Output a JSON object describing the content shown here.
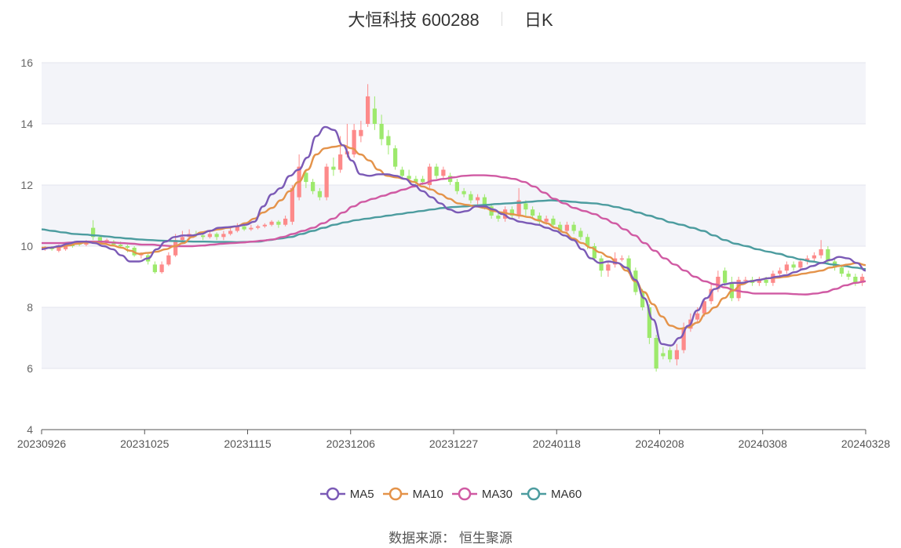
{
  "header": {
    "title": "大恒科技 600288",
    "period": "日K"
  },
  "source": {
    "label": "数据来源：",
    "value": "恒生聚源"
  },
  "colors": {
    "up": "#fd8a8a",
    "down": "#9de96c",
    "MA5": "#7b5ab6",
    "MA10": "#e4934a",
    "MA30": "#d05aa3",
    "MA60": "#4c9c9f"
  },
  "chart_data": {
    "type": "candlestick",
    "ylim": [
      4,
      16
    ],
    "yticks": [
      4,
      6,
      8,
      10,
      12,
      14,
      16
    ],
    "xticks": [
      "20230926",
      "20231025",
      "20231115",
      "20231206",
      "20231227",
      "20240118",
      "20240208",
      "20240308",
      "20240328"
    ],
    "legend": [
      "MA5",
      "MA10",
      "MA30",
      "MA60"
    ],
    "ma": {
      "MA5": [
        9.9,
        9.95,
        10.0,
        10.08,
        10.15,
        10.15,
        10.1,
        10.0,
        9.9,
        9.7,
        9.5,
        9.5,
        9.6,
        9.9,
        10.15,
        10.3,
        10.35,
        10.35,
        10.4,
        10.5,
        10.6,
        10.62,
        10.65,
        10.7,
        10.8,
        11.3,
        11.7,
        11.9,
        12.3,
        12.5,
        12.9,
        13.6,
        13.9,
        13.8,
        13.3,
        12.8,
        12.35,
        12.3,
        12.35,
        12.35,
        12.3,
        12.2,
        12.0,
        11.8,
        11.6,
        11.4,
        11.2,
        11.1,
        11.15,
        11.3,
        11.3,
        11.2,
        11.05,
        10.9,
        10.8,
        10.75,
        10.7,
        10.6,
        10.5,
        10.35,
        10.2,
        9.9,
        9.6,
        9.45,
        9.5,
        9.45,
        9.3,
        8.9,
        8.3,
        7.6,
        6.8,
        6.75,
        7.0,
        7.4,
        7.9,
        8.3,
        8.6,
        8.75,
        8.8,
        8.8,
        8.85,
        8.9,
        8.95,
        9.0,
        9.05,
        9.15,
        9.25,
        9.35,
        9.45,
        9.55,
        9.65,
        9.6,
        9.45,
        9.2
      ],
      "MA10": [
        9.95,
        9.95,
        9.98,
        10.02,
        10.08,
        10.12,
        10.12,
        10.08,
        10.02,
        9.95,
        9.85,
        9.75,
        9.78,
        9.82,
        9.9,
        10.0,
        10.1,
        10.3,
        10.45,
        10.5,
        10.55,
        10.6,
        10.65,
        10.75,
        10.9,
        11.1,
        11.25,
        11.5,
        11.8,
        12.1,
        12.5,
        13.0,
        13.2,
        13.25,
        13.3,
        13.2,
        13.0,
        12.8,
        12.5,
        12.3,
        12.25,
        12.2,
        12.1,
        11.95,
        11.85,
        11.7,
        11.55,
        11.4,
        11.35,
        11.3,
        11.25,
        11.15,
        11.1,
        11.05,
        11.0,
        10.95,
        10.85,
        10.75,
        10.6,
        10.45,
        10.25,
        10.1,
        9.95,
        9.8,
        9.65,
        9.45,
        9.2,
        8.85,
        8.5,
        8.1,
        7.7,
        7.4,
        7.3,
        7.35,
        7.5,
        7.8,
        8.0,
        8.3,
        8.55,
        8.75,
        8.85,
        8.9,
        8.95,
        8.97,
        9.0,
        9.05,
        9.1,
        9.15,
        9.2,
        9.3,
        9.35,
        9.4,
        9.45,
        9.38
      ],
      "MA30": [
        10.1,
        10.1,
        10.1,
        10.12,
        10.15,
        10.15,
        10.15,
        10.12,
        10.1,
        10.08,
        10.05,
        10.05,
        10.02,
        10.0,
        10.0,
        10.0,
        10.02,
        10.05,
        10.08,
        10.1,
        10.12,
        10.15,
        10.18,
        10.22,
        10.3,
        10.4,
        10.5,
        10.6,
        10.75,
        10.9,
        11.1,
        11.3,
        11.45,
        11.55,
        11.65,
        11.75,
        11.85,
        11.95,
        12.05,
        12.15,
        12.2,
        12.25,
        12.3,
        12.32,
        12.32,
        12.3,
        12.25,
        12.2,
        12.1,
        11.95,
        11.75,
        11.55,
        11.4,
        11.25,
        11.15,
        11.05,
        10.9,
        10.75,
        10.55,
        10.35,
        10.1,
        9.85,
        9.6,
        9.4,
        9.2,
        9.0,
        8.85,
        8.75,
        8.65,
        8.55,
        8.5,
        8.45,
        8.45,
        8.45,
        8.45,
        8.43,
        8.42,
        8.45,
        8.5,
        8.6,
        8.72,
        8.8,
        8.85
      ],
      "MA60": [
        10.55,
        10.5,
        10.45,
        10.4,
        10.38,
        10.35,
        10.32,
        10.28,
        10.25,
        10.22,
        10.2,
        10.18,
        10.17,
        10.16,
        10.15,
        10.15,
        10.14,
        10.14,
        10.13,
        10.14,
        10.15,
        10.2,
        10.25,
        10.3,
        10.4,
        10.5,
        10.6,
        10.7,
        10.78,
        10.85,
        10.9,
        10.95,
        11.0,
        11.05,
        11.1,
        11.15,
        11.2,
        11.25,
        11.28,
        11.3,
        11.33,
        11.35,
        11.38,
        11.4,
        11.42,
        11.45,
        11.48,
        11.5,
        11.48,
        11.45,
        11.42,
        11.4,
        11.35,
        11.28,
        11.2,
        11.1,
        11.0,
        10.9,
        10.78,
        10.7,
        10.6,
        10.5,
        10.35,
        10.2,
        10.08,
        10.0,
        9.9,
        9.82,
        9.75,
        9.65,
        9.57,
        9.5,
        9.45,
        9.4,
        9.35,
        9.3,
        9.25
      ]
    },
    "candles": [
      [
        9.9,
        9.95,
        10.0,
        9.85
      ],
      [
        9.95,
        9.9,
        10.0,
        9.85
      ],
      [
        9.85,
        10.0,
        10.05,
        9.8
      ],
      [
        9.9,
        10.05,
        10.1,
        9.85
      ],
      [
        10.05,
        10.0,
        10.1,
        9.95
      ],
      [
        10.1,
        10.05,
        10.15,
        10.0
      ],
      [
        10.05,
        10.1,
        10.2,
        10.0
      ],
      [
        10.6,
        10.3,
        10.85,
        10.2
      ],
      [
        10.3,
        10.1,
        10.35,
        10.0
      ],
      [
        10.1,
        10.2,
        10.25,
        10.05
      ],
      [
        10.15,
        10.05,
        10.2,
        10.0
      ],
      [
        10.05,
        10.0,
        10.15,
        9.95
      ],
      [
        10.0,
        9.95,
        10.05,
        9.8
      ],
      [
        9.95,
        9.7,
        10.0,
        9.65
      ],
      [
        9.7,
        9.75,
        9.8,
        9.6
      ],
      [
        9.7,
        9.5,
        9.75,
        9.4
      ],
      [
        9.4,
        9.15,
        9.5,
        9.1
      ],
      [
        9.15,
        9.4,
        9.5,
        9.1
      ],
      [
        9.4,
        9.7,
        9.8,
        9.35
      ],
      [
        9.7,
        10.2,
        10.4,
        9.65
      ],
      [
        10.2,
        10.3,
        10.5,
        10.1
      ],
      [
        10.3,
        10.4,
        10.55,
        10.2
      ],
      [
        10.4,
        10.35,
        10.5,
        10.3
      ],
      [
        10.35,
        10.3,
        10.4,
        10.2
      ],
      [
        10.3,
        10.4,
        10.5,
        10.25
      ],
      [
        10.4,
        10.3,
        10.45,
        10.2
      ],
      [
        10.3,
        10.4,
        10.5,
        10.2
      ],
      [
        10.4,
        10.5,
        10.6,
        10.35
      ],
      [
        10.5,
        10.65,
        10.75,
        10.45
      ],
      [
        10.65,
        10.55,
        10.7,
        10.5
      ],
      [
        10.55,
        10.6,
        10.7,
        10.5
      ],
      [
        10.6,
        10.65,
        10.7,
        10.55
      ],
      [
        10.65,
        10.7,
        10.75,
        10.6
      ],
      [
        10.7,
        10.8,
        10.85,
        10.65
      ],
      [
        10.8,
        10.7,
        10.85,
        10.6
      ],
      [
        10.7,
        10.9,
        11.0,
        10.65
      ],
      [
        10.8,
        11.9,
        12.0,
        10.7
      ],
      [
        11.6,
        12.6,
        13.0,
        11.5
      ],
      [
        12.4,
        12.1,
        12.5,
        11.9
      ],
      [
        12.1,
        11.8,
        12.2,
        11.7
      ],
      [
        11.8,
        11.6,
        11.9,
        11.5
      ],
      [
        11.6,
        12.6,
        12.7,
        11.5
      ],
      [
        12.6,
        12.5,
        12.9,
        12.3
      ],
      [
        12.5,
        13.0,
        13.6,
        12.4
      ],
      [
        13.0,
        13.1,
        14.0,
        12.9
      ],
      [
        13.0,
        13.8,
        14.0,
        12.9
      ],
      [
        13.6,
        13.8,
        14.1,
        13.4
      ],
      [
        14.0,
        14.9,
        15.3,
        13.9
      ],
      [
        14.5,
        14.0,
        14.9,
        13.8
      ],
      [
        14.0,
        13.5,
        14.3,
        13.3
      ],
      [
        13.6,
        13.3,
        13.8,
        13.0
      ],
      [
        13.2,
        12.6,
        13.3,
        12.5
      ],
      [
        12.5,
        12.3,
        12.6,
        12.2
      ],
      [
        12.3,
        12.2,
        12.5,
        12.1
      ],
      [
        12.2,
        12.1,
        12.3,
        12.0
      ],
      [
        12.2,
        12.1,
        12.3,
        12.0
      ],
      [
        12.0,
        12.6,
        12.7,
        11.9
      ],
      [
        12.6,
        12.3,
        12.7,
        12.2
      ],
      [
        12.3,
        12.5,
        12.6,
        12.2
      ],
      [
        12.3,
        12.1,
        12.4,
        12.0
      ],
      [
        12.1,
        11.8,
        12.2,
        11.7
      ],
      [
        11.8,
        11.7,
        11.9,
        11.6
      ],
      [
        11.7,
        11.5,
        11.8,
        11.4
      ],
      [
        11.5,
        11.6,
        11.7,
        11.3
      ],
      [
        11.6,
        11.3,
        11.7,
        11.2
      ],
      [
        11.3,
        11.0,
        11.4,
        10.9
      ],
      [
        11.0,
        10.9,
        11.1,
        10.8
      ],
      [
        10.9,
        11.2,
        11.3,
        10.8
      ],
      [
        11.2,
        11.0,
        11.3,
        10.9
      ],
      [
        11.0,
        11.5,
        11.9,
        10.9
      ]
    ],
    "candles_tail": [
      [
        11.4,
        11.2,
        11.5,
        11.0
      ],
      [
        11.2,
        11.0,
        11.3,
        10.9
      ],
      [
        11.0,
        10.8,
        11.1,
        10.7
      ],
      [
        10.8,
        10.9,
        11.0,
        10.7
      ],
      [
        10.9,
        10.7,
        11.0,
        10.6
      ],
      [
        10.7,
        10.5,
        10.8,
        10.4
      ],
      [
        10.5,
        10.7,
        10.8,
        10.4
      ],
      [
        10.7,
        10.5,
        10.8,
        10.4
      ],
      [
        10.5,
        10.3,
        10.6,
        10.2
      ],
      [
        10.3,
        10.0,
        10.4,
        9.9
      ],
      [
        10.0,
        9.6,
        10.1,
        9.5
      ],
      [
        9.6,
        9.2,
        9.7,
        9.0
      ],
      [
        9.2,
        9.4,
        9.5,
        9.0
      ],
      [
        9.4,
        9.6,
        9.8,
        9.3
      ],
      [
        9.6,
        9.6,
        9.7,
        9.5
      ],
      [
        9.6,
        9.2,
        9.7,
        9.1
      ],
      [
        9.2,
        8.5,
        9.3,
        8.4
      ],
      [
        8.5,
        8.0,
        8.6,
        7.9
      ],
      [
        8.0,
        7.0,
        8.1,
        6.8
      ],
      [
        7.0,
        6.0,
        7.1,
        5.9
      ],
      [
        6.5,
        6.4,
        6.7,
        6.3
      ],
      [
        6.6,
        6.3,
        6.7,
        6.2
      ],
      [
        6.3,
        6.6,
        6.8,
        6.1
      ],
      [
        6.6,
        7.3,
        7.5,
        6.5
      ],
      [
        7.3,
        7.6,
        7.8,
        7.2
      ],
      [
        7.6,
        7.8,
        8.0,
        7.5
      ],
      [
        7.8,
        8.2,
        8.3,
        7.7
      ],
      [
        8.2,
        8.6,
        8.8,
        8.1
      ],
      [
        8.6,
        9.0,
        9.2,
        8.5
      ],
      [
        9.2,
        8.8,
        9.3,
        8.7
      ],
      [
        8.8,
        8.3,
        9.0,
        8.2
      ],
      [
        8.3,
        8.9,
        9.0,
        8.2
      ],
      [
        8.9,
        8.9,
        9.0,
        8.8
      ],
      [
        8.9,
        8.8,
        9.0,
        8.7
      ],
      [
        8.8,
        8.9,
        9.0,
        8.7
      ],
      [
        8.9,
        8.8,
        9.0,
        8.7
      ],
      [
        8.8,
        9.1,
        9.2,
        8.7
      ],
      [
        9.1,
        9.2,
        9.3,
        9.0
      ],
      [
        9.2,
        9.4,
        9.5,
        9.1
      ],
      [
        9.4,
        9.3,
        9.5,
        9.2
      ],
      [
        9.3,
        9.5,
        9.6,
        9.2
      ],
      [
        9.5,
        9.6,
        9.7,
        9.4
      ],
      [
        9.6,
        9.7,
        9.8,
        9.5
      ],
      [
        9.7,
        9.9,
        10.2,
        9.6
      ],
      [
        9.9,
        9.5,
        10.0,
        9.4
      ],
      [
        9.5,
        9.3,
        9.6,
        9.2
      ],
      [
        9.3,
        9.1,
        9.4,
        9.0
      ],
      [
        9.1,
        9.0,
        9.2,
        8.9
      ],
      [
        9.0,
        8.8,
        9.1,
        8.7
      ],
      [
        8.8,
        9.0,
        9.1,
        8.7
      ]
    ]
  }
}
